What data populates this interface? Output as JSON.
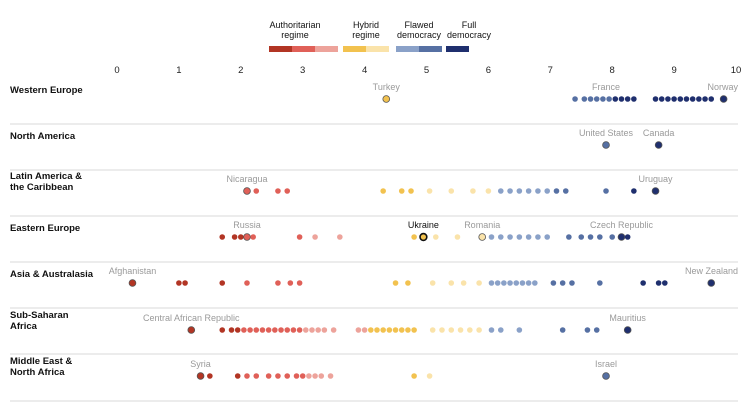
{
  "chart_data": {
    "type": "scatter",
    "x_ticks": [
      0,
      1,
      2,
      3,
      4,
      5,
      6,
      7,
      8,
      9,
      10
    ],
    "xlim": [
      0,
      10
    ],
    "grid": false,
    "legend": {
      "placement": "top-center",
      "groups": [
        {
          "label": "Authoritarian regime",
          "colors": [
            "#b23524",
            "#e06058",
            "#eda39b"
          ]
        },
        {
          "label": "Hybrid regime",
          "colors": [
            "#f2c24f",
            "#fae3aa"
          ]
        },
        {
          "label": "Flawed democracy",
          "colors": [
            "#8aa1c8",
            "#5670a3"
          ]
        },
        {
          "label": "Full democracy",
          "colors": [
            "#1f2f6e"
          ]
        }
      ]
    },
    "color_scale": [
      {
        "max": 2.0,
        "color": "#b23524"
      },
      {
        "max": 3.0,
        "color": "#e06058"
      },
      {
        "max": 4.0,
        "color": "#eda39b"
      },
      {
        "max": 5.0,
        "color": "#f2c24f"
      },
      {
        "max": 6.0,
        "color": "#fae3aa"
      },
      {
        "max": 7.0,
        "color": "#8aa1c8"
      },
      {
        "max": 8.0,
        "color": "#5670a3"
      },
      {
        "max": 10.0,
        "color": "#1f2f6e"
      }
    ],
    "categories": [
      "Western Europe",
      "North America",
      "Latin America & the Caribbean",
      "Eastern Europe",
      "Asia & Australasia",
      "Sub-Saharan Africa",
      "Middle East & North Africa"
    ],
    "series": [
      {
        "name": "Western Europe",
        "values": [
          4.35,
          7.4,
          7.55,
          7.65,
          7.75,
          7.85,
          7.95,
          8.05,
          8.15,
          8.25,
          8.35,
          8.7,
          8.8,
          8.9,
          9.0,
          9.1,
          9.2,
          9.3,
          9.4,
          9.5,
          9.6,
          9.8
        ],
        "labels": [
          {
            "text": "Turkey",
            "value": 4.35
          },
          {
            "text": "France",
            "value": 7.9
          },
          {
            "text": "Norway",
            "value": 9.8
          }
        ]
      },
      {
        "name": "North America",
        "values": [
          7.9,
          8.75
        ],
        "labels": [
          {
            "text": "United States",
            "value": 7.9
          },
          {
            "text": "Canada",
            "value": 8.75
          }
        ]
      },
      {
        "name": "Latin America & the Caribbean",
        "values": [
          2.1,
          2.25,
          2.6,
          2.75,
          4.3,
          4.6,
          4.75,
          5.05,
          5.4,
          5.75,
          6.0,
          6.2,
          6.35,
          6.5,
          6.65,
          6.8,
          6.95,
          7.1,
          7.25,
          7.9,
          8.35,
          8.7
        ],
        "labels": [
          {
            "text": "Nicaragua",
            "value": 2.1
          },
          {
            "text": "Uruguay",
            "value": 8.7
          }
        ]
      },
      {
        "name": "Eastern Europe",
        "values": [
          1.7,
          1.9,
          2.0,
          2.1,
          2.2,
          2.95,
          3.2,
          3.6,
          4.8,
          4.95,
          5.15,
          5.5,
          5.9,
          6.05,
          6.2,
          6.35,
          6.5,
          6.65,
          6.8,
          6.95,
          7.3,
          7.5,
          7.65,
          7.8,
          8.0,
          8.15,
          8.25
        ],
        "labels": [
          {
            "text": "Russia",
            "value": 2.1
          },
          {
            "text": "Ukraine",
            "value": 4.95,
            "highlight": true
          },
          {
            "text": "Romania",
            "value": 5.9
          },
          {
            "text": "Czech Republic",
            "value": 8.15
          }
        ]
      },
      {
        "name": "Asia & Australasia",
        "values": [
          0.25,
          1.0,
          1.1,
          1.7,
          2.1,
          2.6,
          2.8,
          2.95,
          4.5,
          4.7,
          5.1,
          5.4,
          5.6,
          5.85,
          6.05,
          6.15,
          6.25,
          6.35,
          6.45,
          6.55,
          6.65,
          6.75,
          7.05,
          7.2,
          7.35,
          7.8,
          8.5,
          8.75,
          8.85,
          9.6
        ],
        "labels": [
          {
            "text": "Afghanistan",
            "value": 0.25
          },
          {
            "text": "New Zealand",
            "value": 9.6
          }
        ]
      },
      {
        "name": "Sub-Saharan Africa",
        "values": [
          1.2,
          1.7,
          1.85,
          1.95,
          2.05,
          2.15,
          2.25,
          2.35,
          2.45,
          2.55,
          2.65,
          2.75,
          2.85,
          2.95,
          3.05,
          3.15,
          3.25,
          3.35,
          3.5,
          3.9,
          4.0,
          4.1,
          4.2,
          4.3,
          4.4,
          4.5,
          4.6,
          4.7,
          4.8,
          5.1,
          5.25,
          5.4,
          5.55,
          5.7,
          5.85,
          6.05,
          6.2,
          6.5,
          7.2,
          7.6,
          7.75,
          8.25
        ],
        "labels": [
          {
            "text": "Central African Republic",
            "value": 1.2
          },
          {
            "text": "Mauritius",
            "value": 8.25
          }
        ]
      },
      {
        "name": "Middle East & North Africa",
        "values": [
          1.35,
          1.5,
          1.95,
          2.1,
          2.25,
          2.45,
          2.6,
          2.75,
          2.9,
          3.0,
          3.1,
          3.2,
          3.3,
          3.45,
          4.8,
          5.05,
          7.9
        ],
        "labels": [
          {
            "text": "Syria",
            "value": 1.35
          },
          {
            "text": "Israel",
            "value": 7.9
          }
        ]
      }
    ],
    "region_label_lines": [
      [
        "Western Europe"
      ],
      [
        "North America"
      ],
      [
        "Latin America &",
        "the Caribbean"
      ],
      [
        "Eastern Europe"
      ],
      [
        "Asia & Australasia"
      ],
      [
        "Sub-Saharan",
        "Africa"
      ],
      [
        "Middle East &",
        "North Africa"
      ]
    ],
    "legend_label_lines": [
      [
        "Authoritarian",
        "regime"
      ],
      [
        "Hybrid",
        "regime"
      ],
      [
        "Flawed",
        "democracy"
      ],
      [
        "Full",
        "democracy"
      ]
    ]
  }
}
